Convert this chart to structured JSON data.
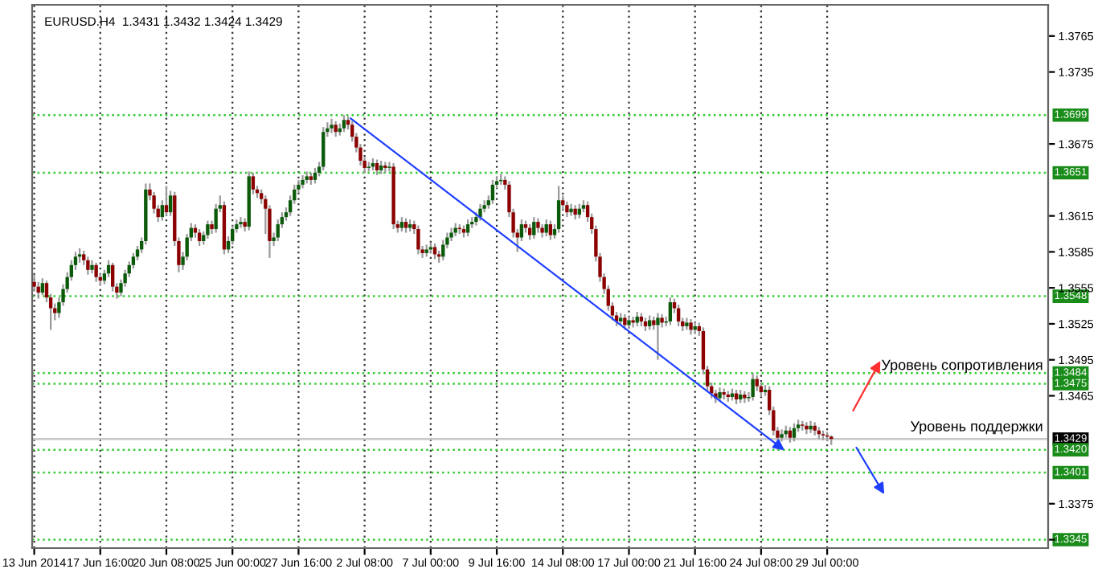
{
  "chart_data": {
    "type": "candlestick",
    "title": "EURUSD.H4  1.3431 1.3432 1.3424 1.3429",
    "annotations": [
      "Уровень сопротивления",
      "Уровень поддержки"
    ],
    "categories": [
      "13 Jun 2014",
      null,
      null,
      null,
      null,
      null,
      null,
      null,
      null,
      null,
      null,
      null,
      null,
      null,
      null,
      null,
      "17 Jun 16:00",
      null,
      null,
      null,
      null,
      null,
      null,
      null,
      null,
      null,
      null,
      null,
      null,
      null,
      null,
      null,
      "20 Jun 08:00",
      null,
      null,
      null,
      null,
      null,
      null,
      null,
      null,
      null,
      null,
      null,
      null,
      null,
      null,
      null,
      "25 Jun 00:00",
      null,
      null,
      null,
      null,
      null,
      null,
      null,
      null,
      null,
      null,
      null,
      null,
      null,
      null,
      null,
      "27 Jun 16:00",
      null,
      null,
      null,
      null,
      null,
      null,
      null,
      null,
      null,
      null,
      null,
      null,
      null,
      null,
      null,
      "2 Jul 08:00",
      null,
      null,
      null,
      null,
      null,
      null,
      null,
      null,
      null,
      null,
      null,
      null,
      null,
      null,
      null,
      "7 Jul 00:00",
      null,
      null,
      null,
      null,
      null,
      null,
      null,
      null,
      null,
      null,
      null,
      null,
      null,
      null,
      null,
      "9 Jul 16:00",
      null,
      null,
      null,
      null,
      null,
      null,
      null,
      null,
      null,
      null,
      null,
      null,
      null,
      null,
      null,
      "14 Jul 08:00",
      null,
      null,
      null,
      null,
      null,
      null,
      null,
      null,
      null,
      null,
      null,
      null,
      null,
      null,
      null,
      "17 Jul 00:00",
      null,
      null,
      null,
      null,
      null,
      null,
      null,
      null,
      null,
      null,
      null,
      null,
      null,
      null,
      null,
      "21 Jul 16:00",
      null,
      null,
      null,
      null,
      null,
      null,
      null,
      null,
      null,
      null,
      null,
      null,
      null,
      null,
      null,
      "24 Jul 08:00",
      null,
      null,
      null,
      null,
      null,
      null,
      null,
      null,
      null,
      null,
      null,
      null,
      null,
      null,
      null,
      "29 Jul 00:00",
      null,
      null,
      null,
      null,
      null,
      null,
      null,
      null,
      null,
      null,
      null,
      null,
      null,
      null,
      null,
      null,
      null,
      null,
      null,
      null,
      null,
      null,
      null,
      null,
      null,
      null,
      null,
      null,
      null,
      null,
      null,
      null,
      null,
      null,
      null,
      null,
      null,
      null,
      null,
      null,
      null,
      null,
      null,
      null,
      null,
      null,
      null,
      null,
      null,
      null,
      null,
      null,
      null
    ],
    "ohlc": [
      [
        1.356,
        1.3566,
        1.3552,
        1.3556
      ],
      [
        1.3556,
        1.356,
        1.3546,
        1.3551
      ],
      [
        1.3551,
        1.3563,
        1.3549,
        1.3559
      ],
      [
        1.3559,
        1.3561,
        1.3543,
        1.3547
      ],
      [
        1.3547,
        1.355,
        1.352,
        1.3538
      ],
      [
        1.3538,
        1.3542,
        1.3528,
        1.3534
      ],
      [
        1.3534,
        1.3547,
        1.353,
        1.3543
      ],
      [
        1.3543,
        1.3558,
        1.354,
        1.3554
      ],
      [
        1.3554,
        1.3568,
        1.3551,
        1.3564
      ],
      [
        1.3564,
        1.3578,
        1.3561,
        1.3574
      ],
      [
        1.3574,
        1.3585,
        1.357,
        1.3581
      ],
      [
        1.3581,
        1.3588,
        1.3576,
        1.3583
      ],
      [
        1.3583,
        1.3586,
        1.3574,
        1.3578
      ],
      [
        1.3578,
        1.3581,
        1.3566,
        1.357
      ],
      [
        1.357,
        1.3578,
        1.3567,
        1.3574
      ],
      [
        1.3574,
        1.3576,
        1.356,
        1.3564
      ],
      [
        1.3564,
        1.3567,
        1.3557,
        1.3561
      ],
      [
        1.3561,
        1.357,
        1.3558,
        1.3567
      ],
      [
        1.3567,
        1.3578,
        1.3564,
        1.3574
      ],
      [
        1.3574,
        1.3576,
        1.3552,
        1.3556
      ],
      [
        1.3556,
        1.3559,
        1.3546,
        1.3551
      ],
      [
        1.3551,
        1.3562,
        1.3548,
        1.3559
      ],
      [
        1.3559,
        1.357,
        1.3556,
        1.3567
      ],
      [
        1.3567,
        1.3577,
        1.3564,
        1.3574
      ],
      [
        1.3574,
        1.3584,
        1.3571,
        1.3581
      ],
      [
        1.3581,
        1.359,
        1.3578,
        1.3587
      ],
      [
        1.3587,
        1.3597,
        1.3584,
        1.3594
      ],
      [
        1.3594,
        1.3642,
        1.3591,
        1.3637
      ],
      [
        1.3637,
        1.3642,
        1.3628,
        1.3632
      ],
      [
        1.3632,
        1.3635,
        1.3617,
        1.3621
      ],
      [
        1.3621,
        1.3624,
        1.361,
        1.3614
      ],
      [
        1.3614,
        1.3628,
        1.3611,
        1.3624
      ],
      [
        1.3624,
        1.364,
        1.3615,
        1.3618
      ],
      [
        1.3618,
        1.3636,
        1.3615,
        1.3632
      ],
      [
        1.3632,
        1.3635,
        1.359,
        1.3594
      ],
      [
        1.3594,
        1.3597,
        1.3568,
        1.3574
      ],
      [
        1.3574,
        1.3585,
        1.357,
        1.3581
      ],
      [
        1.3581,
        1.36,
        1.3578,
        1.3597
      ],
      [
        1.3597,
        1.3609,
        1.3594,
        1.3605
      ],
      [
        1.3605,
        1.3608,
        1.3597,
        1.3601
      ],
      [
        1.3601,
        1.3604,
        1.359,
        1.3594
      ],
      [
        1.3594,
        1.3602,
        1.3591,
        1.3599
      ],
      [
        1.3599,
        1.3611,
        1.3596,
        1.3608
      ],
      [
        1.3608,
        1.3611,
        1.36,
        1.3604
      ],
      [
        1.3604,
        1.3625,
        1.3601,
        1.3621
      ],
      [
        1.3621,
        1.3632,
        1.3618,
        1.3624
      ],
      [
        1.3624,
        1.3627,
        1.3583,
        1.3587
      ],
      [
        1.3587,
        1.3598,
        1.3584,
        1.3594
      ],
      [
        1.3594,
        1.3607,
        1.3591,
        1.3604
      ],
      [
        1.3604,
        1.3612,
        1.3601,
        1.3608
      ],
      [
        1.3608,
        1.3614,
        1.3605,
        1.361
      ],
      [
        1.361,
        1.3613,
        1.3602,
        1.3606
      ],
      [
        1.3606,
        1.3652,
        1.3603,
        1.3648
      ],
      [
        1.3648,
        1.3651,
        1.3633,
        1.3637
      ],
      [
        1.3637,
        1.364,
        1.363,
        1.3634
      ],
      [
        1.3634,
        1.3637,
        1.3625,
        1.3629
      ],
      [
        1.3629,
        1.3632,
        1.36,
        1.3621
      ],
      [
        1.3621,
        1.3624,
        1.358,
        1.3594
      ],
      [
        1.3594,
        1.3601,
        1.359,
        1.3597
      ],
      [
        1.3597,
        1.3612,
        1.3594,
        1.3608
      ],
      [
        1.3608,
        1.3618,
        1.3605,
        1.3614
      ],
      [
        1.3614,
        1.3622,
        1.3611,
        1.3618
      ],
      [
        1.3618,
        1.3632,
        1.3615,
        1.3628
      ],
      [
        1.3628,
        1.3641,
        1.3625,
        1.3637
      ],
      [
        1.3637,
        1.3645,
        1.3634,
        1.3641
      ],
      [
        1.3641,
        1.3649,
        1.3638,
        1.3645
      ],
      [
        1.3645,
        1.3652,
        1.3642,
        1.3648
      ],
      [
        1.3648,
        1.3651,
        1.3641,
        1.3645
      ],
      [
        1.3645,
        1.3655,
        1.3642,
        1.3651
      ],
      [
        1.3651,
        1.366,
        1.3648,
        1.3656
      ],
      [
        1.3656,
        1.3689,
        1.3653,
        1.3685
      ],
      [
        1.3685,
        1.3693,
        1.3681,
        1.3688
      ],
      [
        1.3688,
        1.3696,
        1.3684,
        1.3691
      ],
      [
        1.3691,
        1.3694,
        1.3681,
        1.3685
      ],
      [
        1.3685,
        1.3692,
        1.3682,
        1.3688
      ],
      [
        1.3688,
        1.3699,
        1.3685,
        1.3695
      ],
      [
        1.3695,
        1.3698,
        1.3687,
        1.3691
      ],
      [
        1.3691,
        1.3694,
        1.3677,
        1.3681
      ],
      [
        1.3681,
        1.3684,
        1.3668,
        1.3672
      ],
      [
        1.3672,
        1.3675,
        1.3657,
        1.3661
      ],
      [
        1.3661,
        1.3664,
        1.3651,
        1.3655
      ],
      [
        1.3655,
        1.366,
        1.3652,
        1.3656
      ],
      [
        1.3656,
        1.3663,
        1.3653,
        1.3659
      ],
      [
        1.3659,
        1.3662,
        1.3649,
        1.3653
      ],
      [
        1.3653,
        1.3661,
        1.365,
        1.3657
      ],
      [
        1.3657,
        1.366,
        1.3651,
        1.3655
      ],
      [
        1.3655,
        1.366,
        1.3652,
        1.3656
      ],
      [
        1.3656,
        1.3659,
        1.3604,
        1.3608
      ],
      [
        1.3608,
        1.3611,
        1.3601,
        1.3605
      ],
      [
        1.3605,
        1.3614,
        1.3602,
        1.361
      ],
      [
        1.361,
        1.3613,
        1.3601,
        1.3605
      ],
      [
        1.3605,
        1.3612,
        1.3602,
        1.3608
      ],
      [
        1.3608,
        1.3611,
        1.36,
        1.3604
      ],
      [
        1.3604,
        1.3607,
        1.3583,
        1.3587
      ],
      [
        1.3587,
        1.359,
        1.358,
        1.3584
      ],
      [
        1.3584,
        1.3591,
        1.3581,
        1.3587
      ],
      [
        1.3587,
        1.3593,
        1.3584,
        1.3589
      ],
      [
        1.3589,
        1.3592,
        1.3579,
        1.3583
      ],
      [
        1.3583,
        1.3586,
        1.3576,
        1.3581
      ],
      [
        1.3581,
        1.3595,
        1.3578,
        1.3591
      ],
      [
        1.3591,
        1.3601,
        1.3588,
        1.3597
      ],
      [
        1.3597,
        1.3605,
        1.3594,
        1.3601
      ],
      [
        1.3601,
        1.3609,
        1.3598,
        1.3605
      ],
      [
        1.3605,
        1.3608,
        1.36,
        1.3604
      ],
      [
        1.3604,
        1.3607,
        1.3597,
        1.3601
      ],
      [
        1.3601,
        1.3612,
        1.3598,
        1.3608
      ],
      [
        1.3608,
        1.3614,
        1.3605,
        1.361
      ],
      [
        1.361,
        1.3618,
        1.3607,
        1.3614
      ],
      [
        1.3614,
        1.3625,
        1.3611,
        1.3621
      ],
      [
        1.3621,
        1.3628,
        1.3618,
        1.3624
      ],
      [
        1.3624,
        1.3632,
        1.3621,
        1.3628
      ],
      [
        1.3628,
        1.3645,
        1.3625,
        1.3641
      ],
      [
        1.3641,
        1.3648,
        1.3638,
        1.3644
      ],
      [
        1.3644,
        1.365,
        1.3641,
        1.3645
      ],
      [
        1.3645,
        1.3648,
        1.3637,
        1.3641
      ],
      [
        1.3641,
        1.3644,
        1.3614,
        1.3618
      ],
      [
        1.3618,
        1.3621,
        1.3597,
        1.3601
      ],
      [
        1.3601,
        1.3604,
        1.3585,
        1.3597
      ],
      [
        1.3597,
        1.3612,
        1.3594,
        1.3608
      ],
      [
        1.3608,
        1.3611,
        1.3601,
        1.3605
      ],
      [
        1.3605,
        1.3608,
        1.3595,
        1.3599
      ],
      [
        1.3599,
        1.3614,
        1.3596,
        1.361
      ],
      [
        1.361,
        1.3613,
        1.3601,
        1.3605
      ],
      [
        1.3605,
        1.3608,
        1.3597,
        1.3601
      ],
      [
        1.3601,
        1.3612,
        1.3598,
        1.3608
      ],
      [
        1.3608,
        1.3611,
        1.3595,
        1.3599
      ],
      [
        1.3599,
        1.3608,
        1.3596,
        1.3604
      ],
      [
        1.3604,
        1.364,
        1.3601,
        1.3628
      ],
      [
        1.3628,
        1.3632,
        1.362,
        1.3624
      ],
      [
        1.3624,
        1.3627,
        1.3614,
        1.3618
      ],
      [
        1.3618,
        1.3625,
        1.3615,
        1.3621
      ],
      [
        1.3621,
        1.3624,
        1.3612,
        1.3616
      ],
      [
        1.3616,
        1.3625,
        1.3613,
        1.3621
      ],
      [
        1.3621,
        1.3628,
        1.3618,
        1.3624
      ],
      [
        1.3624,
        1.3627,
        1.361,
        1.3614
      ],
      [
        1.3614,
        1.3617,
        1.36,
        1.3604
      ],
      [
        1.3604,
        1.3607,
        1.3577,
        1.3581
      ],
      [
        1.3581,
        1.3584,
        1.356,
        1.3564
      ],
      [
        1.3564,
        1.3567,
        1.355,
        1.3554
      ],
      [
        1.3554,
        1.3557,
        1.3536,
        1.354
      ],
      [
        1.354,
        1.3543,
        1.3528,
        1.3532
      ],
      [
        1.3532,
        1.3535,
        1.3523,
        1.3527
      ],
      [
        1.3527,
        1.3534,
        1.3524,
        1.353
      ],
      [
        1.353,
        1.3533,
        1.352,
        1.3524
      ],
      [
        1.3524,
        1.3532,
        1.3521,
        1.3528
      ],
      [
        1.3528,
        1.3531,
        1.3522,
        1.3526
      ],
      [
        1.3526,
        1.3535,
        1.3523,
        1.3531
      ],
      [
        1.3531,
        1.3534,
        1.3523,
        1.3527
      ],
      [
        1.3527,
        1.353,
        1.3519,
        1.3523
      ],
      [
        1.3523,
        1.3532,
        1.352,
        1.3528
      ],
      [
        1.3528,
        1.3531,
        1.352,
        1.3524
      ],
      [
        1.3524,
        1.3534,
        1.3495,
        1.353
      ],
      [
        1.353,
        1.3533,
        1.3522,
        1.3526
      ],
      [
        1.3526,
        1.3531,
        1.3523,
        1.3527
      ],
      [
        1.3527,
        1.3547,
        1.3524,
        1.3543
      ],
      [
        1.3543,
        1.3546,
        1.3534,
        1.3538
      ],
      [
        1.3538,
        1.3541,
        1.3523,
        1.3527
      ],
      [
        1.3527,
        1.353,
        1.3519,
        1.3523
      ],
      [
        1.3523,
        1.353,
        1.352,
        1.3526
      ],
      [
        1.3526,
        1.3529,
        1.3516,
        1.352
      ],
      [
        1.352,
        1.3527,
        1.3517,
        1.3523
      ],
      [
        1.3523,
        1.3526,
        1.3515,
        1.3519
      ],
      [
        1.3519,
        1.3522,
        1.3483,
        1.3487
      ],
      [
        1.3487,
        1.349,
        1.3469,
        1.3473
      ],
      [
        1.3473,
        1.3476,
        1.3463,
        1.3467
      ],
      [
        1.3467,
        1.347,
        1.3459,
        1.3463
      ],
      [
        1.3463,
        1.3472,
        1.346,
        1.3468
      ],
      [
        1.3468,
        1.3471,
        1.3462,
        1.3466
      ],
      [
        1.3466,
        1.3469,
        1.346,
        1.3464
      ],
      [
        1.3464,
        1.3471,
        1.3461,
        1.3467
      ],
      [
        1.3467,
        1.347,
        1.3458,
        1.3462
      ],
      [
        1.3462,
        1.347,
        1.3459,
        1.3466
      ],
      [
        1.3466,
        1.3469,
        1.3459,
        1.3463
      ],
      [
        1.3463,
        1.3468,
        1.346,
        1.3464
      ],
      [
        1.3464,
        1.3484,
        1.3461,
        1.3479
      ],
      [
        1.3479,
        1.3482,
        1.3469,
        1.3473
      ],
      [
        1.3473,
        1.3476,
        1.3464,
        1.3468
      ],
      [
        1.3468,
        1.3474,
        1.3465,
        1.347
      ],
      [
        1.347,
        1.3473,
        1.3449,
        1.3453
      ],
      [
        1.3453,
        1.3456,
        1.3432,
        1.3436
      ],
      [
        1.3436,
        1.3439,
        1.342,
        1.343
      ],
      [
        1.343,
        1.3437,
        1.3427,
        1.3433
      ],
      [
        1.3433,
        1.344,
        1.343,
        1.3436
      ],
      [
        1.3436,
        1.3439,
        1.3426,
        1.343
      ],
      [
        1.343,
        1.3442,
        1.3427,
        1.3438
      ],
      [
        1.3438,
        1.3445,
        1.3435,
        1.3441
      ],
      [
        1.3441,
        1.3444,
        1.3436,
        1.344
      ],
      [
        1.344,
        1.3443,
        1.3433,
        1.3437
      ],
      [
        1.3437,
        1.3444,
        1.3434,
        1.344
      ],
      [
        1.344,
        1.3443,
        1.3432,
        1.3436
      ],
      [
        1.3436,
        1.3439,
        1.3429,
        1.3433
      ],
      [
        1.3433,
        1.3436,
        1.3428,
        1.3432
      ],
      [
        1.3432,
        1.3435,
        1.3427,
        1.3431
      ],
      [
        1.3431,
        1.3432,
        1.3424,
        1.3429
      ],
      null,
      null,
      null,
      null,
      null,
      null,
      null,
      null,
      null,
      null,
      null,
      null,
      null,
      null,
      null,
      null,
      null,
      null,
      null,
      null,
      null,
      null,
      null,
      null,
      null,
      null,
      null,
      null,
      null,
      null,
      null,
      null,
      null,
      null,
      null,
      null,
      null,
      null,
      null,
      null,
      null,
      null,
      null,
      null,
      null,
      null,
      null,
      null,
      null,
      null,
      null,
      null
    ],
    "ylim": [
      1.3338,
      1.3791
    ],
    "yticks": [
      {
        "value": 1.3345,
        "label": null
      },
      1.3375,
      1.3465,
      1.3495,
      1.3525,
      1.3555,
      1.3585,
      1.3615,
      1.3675,
      1.3735,
      1.3765
    ],
    "grid": "x",
    "ref_lines": [
      {
        "axis": "y",
        "value": 1.3699,
        "label": "1.3699",
        "color": "#33cc33",
        "line_style": "dotted"
      },
      {
        "axis": "y",
        "value": 1.3651,
        "label": "1.3651",
        "color": "#33cc33",
        "line_style": "dotted"
      },
      {
        "axis": "y",
        "value": 1.3548,
        "label": "1.3548",
        "color": "#33cc33",
        "line_style": "dotted"
      },
      {
        "axis": "y",
        "value": 1.3484,
        "label": "1.3484",
        "color": "#33cc33",
        "line_style": "dotted"
      },
      {
        "axis": "y",
        "value": 1.3475,
        "label": "1.3475",
        "color": "#33cc33",
        "line_style": "dotted"
      },
      {
        "axis": "y",
        "value": 1.3429,
        "label": "1.3429",
        "color": "#c8c8c8",
        "line_style": "solid"
      },
      {
        "axis": "y",
        "value": 1.342,
        "label": "1.3420",
        "color": "#33cc33",
        "line_style": "dotted"
      },
      {
        "axis": "y",
        "value": 1.3401,
        "label": "1.3401",
        "color": "#33cc33",
        "line_style": "dotted"
      },
      {
        "axis": "y",
        "value": 1.3345,
        "label": "1.3345",
        "color": "#33cc33",
        "line_style": "dotted"
      }
    ]
  }
}
